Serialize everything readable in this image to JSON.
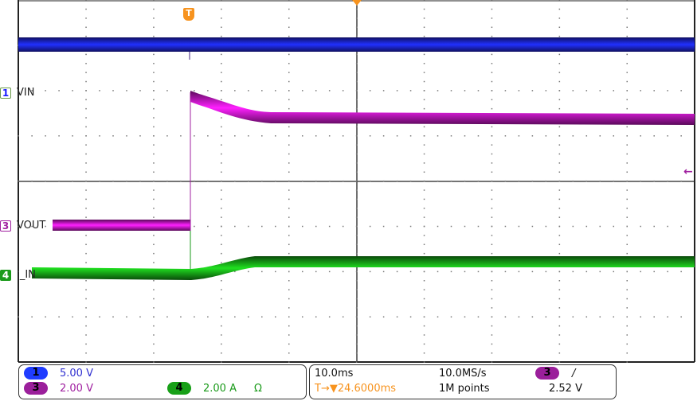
{
  "channels": {
    "ch1": {
      "number": "1",
      "name": "VIN",
      "scale": "5.00 V",
      "color": "#1a1aff",
      "pill_color": "#1f3cff"
    },
    "ch3": {
      "number": "3",
      "name": "VOUT",
      "scale": "2.00 V",
      "color": "#a020a0",
      "pill_color": "#9b1f9b"
    },
    "ch4": {
      "number": "4",
      "name": "I_IN",
      "scale": "2.00 A",
      "coupling_icon": "Ω",
      "color": "#1a9a1a",
      "pill_color": "#18a018"
    }
  },
  "trigger": {
    "marker_label": "T",
    "source": "3",
    "slope_icon": "/",
    "level": "2.52 V",
    "position": "24.6000ms",
    "position_prefix": "T→▼"
  },
  "timebase": {
    "scale": "10.0ms",
    "sample_rate": "10.0MS/s",
    "record_length": "1M points"
  },
  "graticule": {
    "h_divisions": 10,
    "v_divisions": 8
  }
}
